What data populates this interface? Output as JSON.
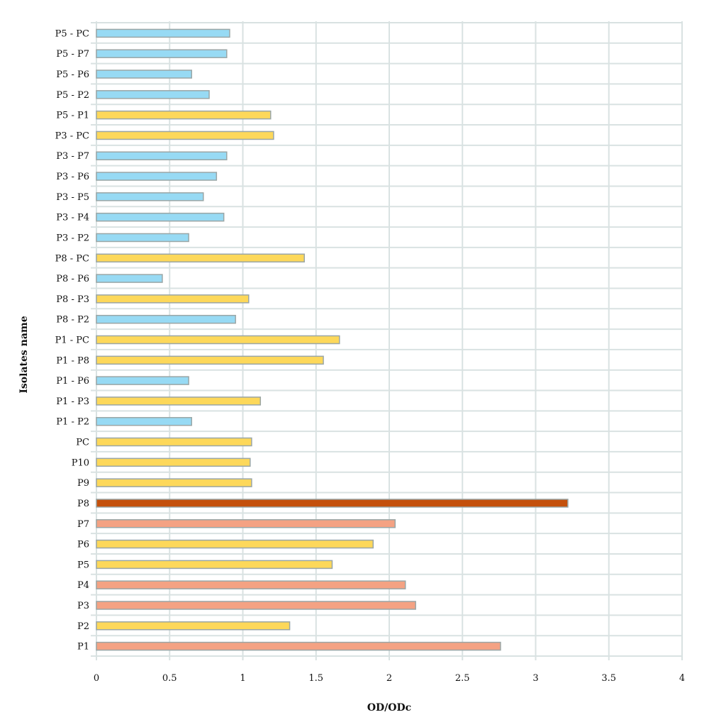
{
  "chart_data": {
    "type": "bar",
    "orientation": "horizontal",
    "xlabel": "OD/ODc",
    "ylabel": "Isolates name",
    "xlim": [
      0,
      4
    ],
    "xticks": [
      "0",
      "0.5",
      "1",
      "1.5",
      "2",
      "2.5",
      "3",
      "3.5",
      "4"
    ],
    "grid": true,
    "legend": "none",
    "colors": {
      "blue": "#97daf4",
      "yellow": "#fdd85a",
      "salmon": "#f4a283",
      "dark-orange": "#c4500c",
      "border": "#9aa6a6",
      "grid": "#d9e2e2"
    },
    "categories": [
      "P1",
      "P2",
      "P3",
      "P4",
      "P5",
      "P6",
      "P7",
      "P8",
      "P9",
      "P10",
      "PC",
      "P1 - P2",
      "P1 - P3",
      "P1 - P6",
      "P1 - P8",
      "P1 - PC",
      "P8 - P2",
      "P8 - P3",
      "P8 - P6",
      "P8 - PC",
      "P3 - P2",
      "P3 - P4",
      "P3 - P5",
      "P3 - P6",
      "P3 - P7",
      "P3 - PC",
      "P5 - P1",
      "P5 - P2",
      "P5 - P6",
      "P5 - P7",
      "P5 - PC"
    ],
    "values": [
      2.76,
      1.32,
      2.18,
      2.11,
      1.61,
      1.89,
      2.04,
      3.22,
      1.06,
      1.05,
      1.06,
      0.65,
      1.12,
      0.63,
      1.55,
      1.66,
      0.95,
      1.04,
      0.45,
      1.42,
      0.63,
      0.87,
      0.73,
      0.82,
      0.89,
      1.21,
      1.19,
      0.77,
      0.65,
      0.89,
      0.91
    ],
    "bar_colors": [
      "salmon",
      "yellow",
      "salmon",
      "salmon",
      "yellow",
      "yellow",
      "salmon",
      "dark-orange",
      "yellow",
      "yellow",
      "yellow",
      "blue",
      "yellow",
      "blue",
      "yellow",
      "yellow",
      "blue",
      "yellow",
      "blue",
      "yellow",
      "blue",
      "blue",
      "blue",
      "blue",
      "blue",
      "yellow",
      "yellow",
      "blue",
      "blue",
      "blue",
      "blue"
    ]
  }
}
